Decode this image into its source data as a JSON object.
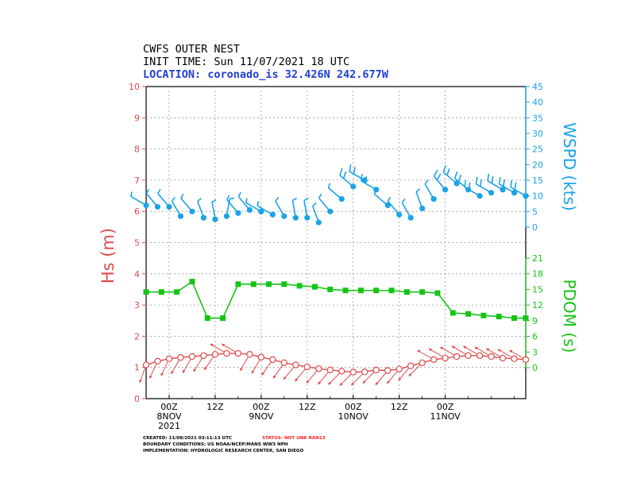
{
  "header": {
    "title": "CWFS OUTER NEST",
    "init_time": "INIT TIME: Sun 11/07/2021 18 UTC",
    "location": "LOCATION: coronado_is 32.426N 242.677W"
  },
  "footer": {
    "created": "CREATED: 11/08/2021 03:11:13 UTC",
    "status": "STATUS: NOT UNK RAN13",
    "boundary": "BOUNDARY CONDITIONS: US NOAA/NCEP/MANS WW3 NPH",
    "implementation": "IMPLEMENTATION: HYDROLOGIC RESEARCH CENTER, SAN DIEGO"
  },
  "colors": {
    "hs": "#e04a4a",
    "wspd": "#1aa3e8",
    "pdom": "#16c416",
    "grid": "#9a9a9a"
  },
  "chart_data": {
    "type": "line",
    "x_unit": "hours after 2021-11-07 18Z",
    "x_range": [
      0,
      99
    ],
    "x_ticks": [
      {
        "x": 6,
        "label": "00Z",
        "sub": "8NOV",
        "sub2": "2021"
      },
      {
        "x": 18,
        "label": "12Z",
        "sub": "",
        "sub2": ""
      },
      {
        "x": 30,
        "label": "00Z",
        "sub": "9NOV",
        "sub2": ""
      },
      {
        "x": 42,
        "label": "12Z",
        "sub": "",
        "sub2": ""
      },
      {
        "x": 54,
        "label": "00Z",
        "sub": "10NOV",
        "sub2": ""
      },
      {
        "x": 66,
        "label": "12Z",
        "sub": "",
        "sub2": ""
      },
      {
        "x": 78,
        "label": "00Z",
        "sub": "11NOV",
        "sub2": ""
      }
    ],
    "axes": {
      "hs": {
        "label": "Hs (m)",
        "range": [
          0,
          10
        ],
        "ticks": [
          0,
          1,
          2,
          3,
          4,
          5,
          6,
          7,
          8,
          9,
          10
        ]
      },
      "wspd": {
        "label": "WSPD (kts)",
        "range": [
          0,
          45
        ],
        "ticks": [
          0,
          5,
          10,
          15,
          20,
          25,
          30,
          35,
          40,
          45
        ]
      },
      "pdom": {
        "label": "PDOM (s)",
        "range": [
          0,
          21
        ],
        "ticks": [
          0,
          3,
          6,
          9,
          12,
          15,
          18,
          21
        ]
      }
    },
    "hs": {
      "name": "Hs",
      "x": [
        0,
        3,
        6,
        9,
        12,
        15,
        18,
        21,
        24,
        27,
        30,
        33,
        36,
        39,
        42,
        45,
        48,
        51,
        54,
        57,
        60,
        63,
        66,
        69,
        72,
        75,
        78,
        81,
        84,
        87,
        90,
        93,
        96,
        99
      ],
      "values": [
        1.08,
        1.2,
        1.28,
        1.32,
        1.35,
        1.38,
        1.42,
        1.45,
        1.45,
        1.42,
        1.33,
        1.25,
        1.15,
        1.08,
        1.02,
        0.96,
        0.92,
        0.88,
        0.85,
        0.86,
        0.92,
        0.9,
        0.95,
        1.05,
        1.15,
        1.25,
        1.3,
        1.35,
        1.38,
        1.38,
        1.35,
        1.3,
        1.28,
        1.25
      ],
      "wave_dir_deg": [
        200,
        205,
        205,
        210,
        210,
        212,
        215,
        300,
        300,
        210,
        210,
        215,
        215,
        220,
        220,
        220,
        220,
        225,
        225,
        225,
        225,
        220,
        220,
        220,
        225,
        300,
        300,
        300,
        300,
        300,
        300,
        300,
        300,
        300
      ]
    },
    "wspd": {
      "name": "WSPD",
      "x": [
        0,
        3,
        6,
        9,
        12,
        15,
        18,
        21,
        24,
        27,
        30,
        33,
        36,
        39,
        42,
        45,
        48,
        51,
        54,
        57,
        60,
        63,
        66,
        69,
        72,
        75,
        78,
        81,
        84,
        87,
        90,
        93,
        96,
        99
      ],
      "values": [
        7,
        6.5,
        6.5,
        3.5,
        5,
        3,
        2.5,
        3.5,
        4.5,
        5.5,
        5,
        4,
        3.5,
        3,
        3,
        1.5,
        5,
        9,
        13,
        15,
        12,
        7,
        4,
        3,
        6,
        9,
        12,
        14,
        12,
        10,
        11,
        12,
        11,
        10
      ],
      "dir_deg": [
        300,
        320,
        320,
        330,
        320,
        340,
        350,
        10,
        320,
        320,
        300,
        300,
        330,
        350,
        350,
        340,
        320,
        310,
        310,
        300,
        300,
        310,
        320,
        330,
        340,
        330,
        320,
        310,
        310,
        300,
        300,
        300,
        300,
        300
      ]
    },
    "pdom": {
      "name": "PDOM",
      "x": [
        0,
        4,
        8,
        12,
        16,
        20,
        24,
        28,
        32,
        36,
        40,
        44,
        48,
        52,
        56,
        60,
        64,
        68,
        72,
        76,
        80,
        84,
        88,
        92,
        96,
        99
      ],
      "values": [
        14.5,
        14.5,
        14.5,
        16.5,
        9.5,
        9.5,
        16,
        16,
        16,
        16,
        15.7,
        15.5,
        15,
        14.8,
        14.8,
        14.8,
        14.8,
        14.5,
        14.5,
        14.3,
        10.5,
        10.3,
        10,
        9.8,
        9.5,
        9.5
      ]
    }
  }
}
